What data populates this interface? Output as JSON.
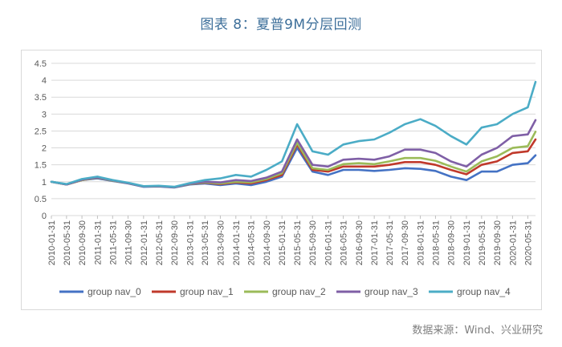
{
  "title": "图表 8：夏普9M分层回测",
  "source": "数据来源：Wind、兴业研究",
  "chart_data": {
    "type": "line",
    "title": "图表 8：夏普9M分层回测",
    "xlabel": "",
    "ylabel": "",
    "ylim": [
      0,
      4.5
    ],
    "yticks": [
      "0",
      "0.5",
      "1",
      "1.5",
      "2",
      "2.5",
      "3",
      "3.5",
      "4",
      "4.5"
    ],
    "grid": "horizontal",
    "legend": "bottom",
    "x_ticks": [
      "2010-01-31",
      "2010-05-31",
      "2010-09-30",
      "2011-01-31",
      "2011-05-31",
      "2011-09-30",
      "2012-01-31",
      "2012-05-31",
      "2012-09-30",
      "2013-01-31",
      "2013-05-31",
      "2013-09-30",
      "2014-01-31",
      "2014-05-31",
      "2014-09-30",
      "2015-01-31",
      "2015-05-31",
      "2015-09-30",
      "2016-01-31",
      "2016-05-31",
      "2016-09-30",
      "2017-01-31",
      "2017-05-31",
      "2017-09-30",
      "2018-01-31",
      "2018-05-31",
      "2018-09-30",
      "2019-01-31",
      "2019-05-31",
      "2019-09-30",
      "2020-01-31",
      "2020-05-31"
    ],
    "x": [
      "2010-01-31",
      "2010-05-31",
      "2010-09-30",
      "2011-01-31",
      "2011-05-31",
      "2011-09-30",
      "2012-01-31",
      "2012-05-31",
      "2012-09-30",
      "2013-01-31",
      "2013-05-31",
      "2013-09-30",
      "2014-01-31",
      "2014-05-31",
      "2014-09-30",
      "2015-01-31",
      "2015-05-31",
      "2015-09-30",
      "2016-01-31",
      "2016-05-31",
      "2016-09-30",
      "2017-01-31",
      "2017-05-31",
      "2017-09-30",
      "2018-01-31",
      "2018-05-31",
      "2018-09-30",
      "2019-01-31",
      "2019-05-31",
      "2019-09-30",
      "2020-01-31",
      "2020-05-31",
      "2020-07-31"
    ],
    "series": [
      {
        "name": "group nav_0",
        "color": "#4472c4",
        "values": [
          1.0,
          0.92,
          1.05,
          1.1,
          1.02,
          0.95,
          0.85,
          0.86,
          0.83,
          0.92,
          0.95,
          0.9,
          0.95,
          0.9,
          1.0,
          1.15,
          2.0,
          1.3,
          1.2,
          1.35,
          1.35,
          1.32,
          1.35,
          1.4,
          1.38,
          1.32,
          1.15,
          1.05,
          1.3,
          1.3,
          1.5,
          1.55,
          1.78
        ]
      },
      {
        "name": "group nav_1",
        "color": "#c0392b",
        "values": [
          1.0,
          0.92,
          1.05,
          1.12,
          1.03,
          0.96,
          0.86,
          0.87,
          0.84,
          0.93,
          0.97,
          0.93,
          0.98,
          0.95,
          1.05,
          1.2,
          2.1,
          1.35,
          1.3,
          1.45,
          1.45,
          1.45,
          1.5,
          1.58,
          1.58,
          1.5,
          1.35,
          1.22,
          1.5,
          1.6,
          1.85,
          1.9,
          2.25
        ]
      },
      {
        "name": "group nav_2",
        "color": "#9bbb59",
        "values": [
          1.0,
          0.92,
          1.05,
          1.12,
          1.03,
          0.96,
          0.86,
          0.87,
          0.84,
          0.93,
          0.98,
          0.95,
          1.0,
          0.98,
          1.08,
          1.25,
          2.15,
          1.4,
          1.35,
          1.52,
          1.55,
          1.52,
          1.6,
          1.7,
          1.7,
          1.62,
          1.45,
          1.3,
          1.6,
          1.75,
          2.0,
          2.05,
          2.48
        ]
      },
      {
        "name": "group nav_3",
        "color": "#7f5fa6",
        "values": [
          1.0,
          0.92,
          1.06,
          1.13,
          1.04,
          0.96,
          0.86,
          0.87,
          0.84,
          0.94,
          1.0,
          0.98,
          1.05,
          1.02,
          1.12,
          1.3,
          2.25,
          1.5,
          1.45,
          1.65,
          1.68,
          1.65,
          1.75,
          1.95,
          1.95,
          1.85,
          1.6,
          1.45,
          1.8,
          2.0,
          2.35,
          2.4,
          2.82
        ]
      },
      {
        "name": "group nav_4",
        "color": "#4bacc6",
        "values": [
          1.0,
          0.93,
          1.08,
          1.15,
          1.05,
          0.97,
          0.87,
          0.88,
          0.85,
          0.96,
          1.05,
          1.1,
          1.2,
          1.15,
          1.35,
          1.6,
          2.7,
          1.9,
          1.8,
          2.1,
          2.2,
          2.25,
          2.45,
          2.7,
          2.85,
          2.65,
          2.35,
          2.1,
          2.6,
          2.7,
          3.0,
          3.2,
          3.95
        ]
      }
    ]
  }
}
